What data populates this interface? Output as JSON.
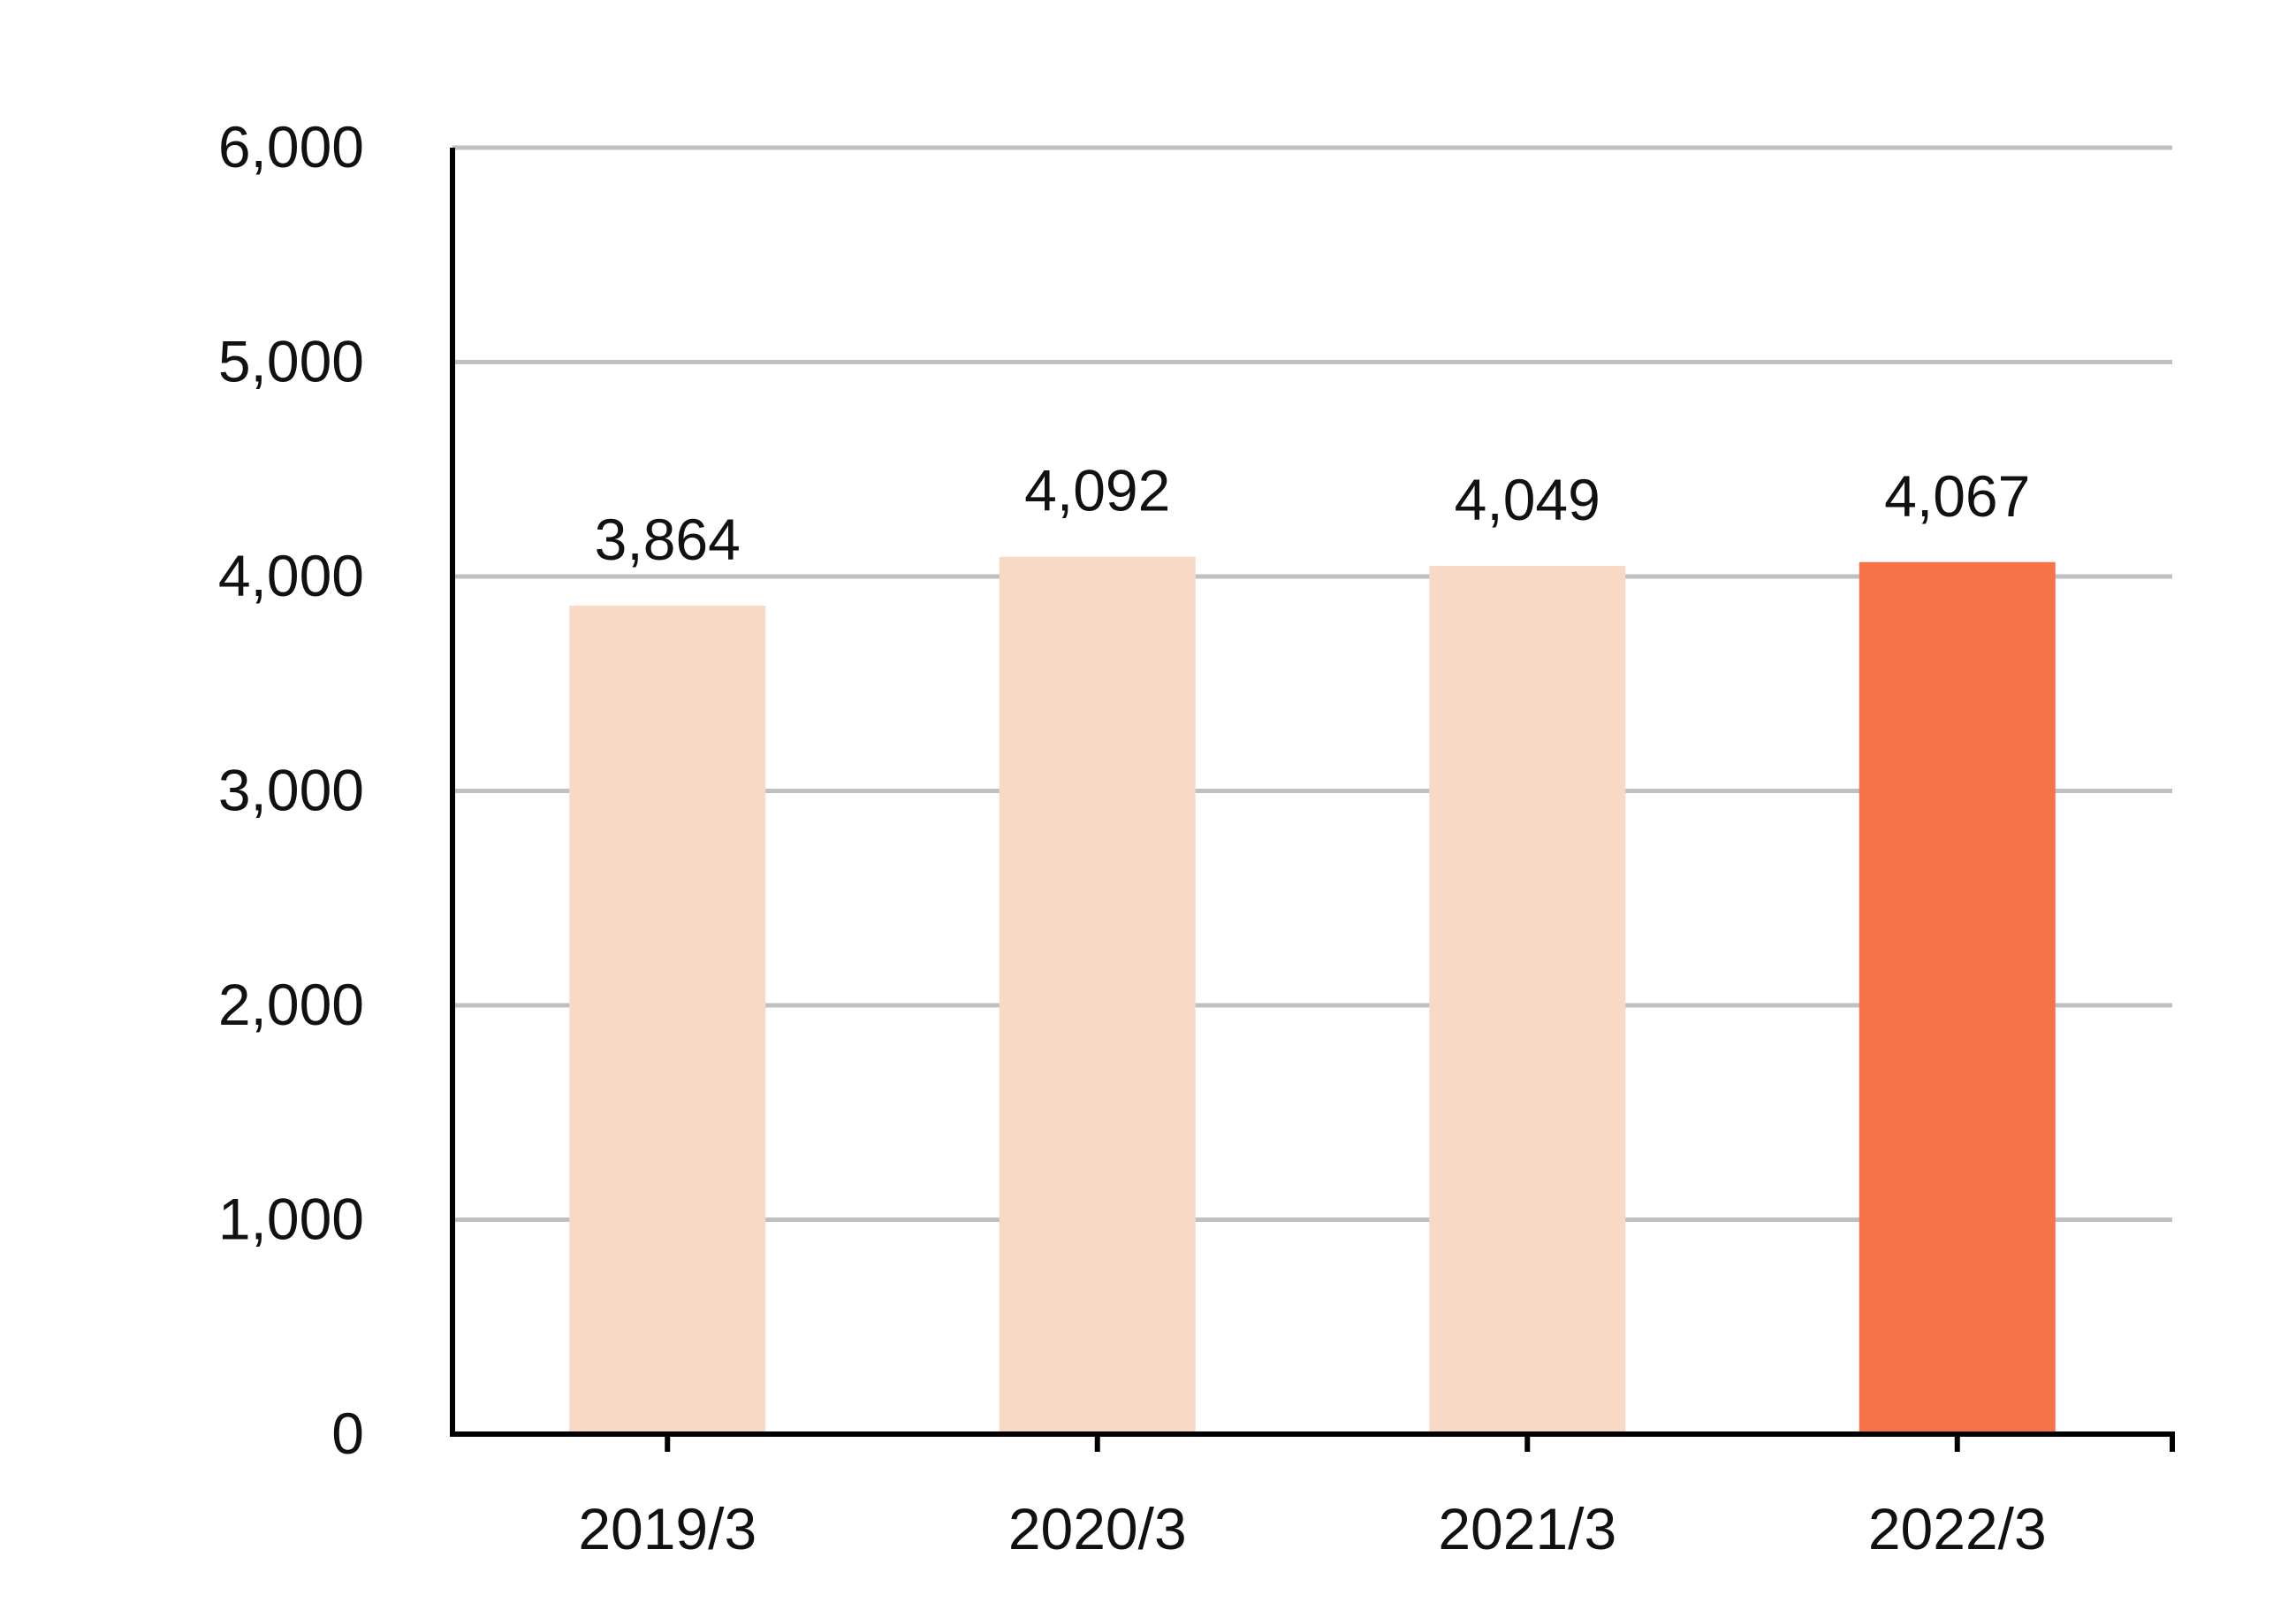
{
  "chart_data": {
    "type": "bar",
    "title": "",
    "xlabel": "",
    "ylabel": "",
    "categories": [
      "2019/3",
      "2020/3",
      "2021/3",
      "2022/3"
    ],
    "values": [
      3864,
      4092,
      4049,
      4067
    ],
    "value_labels": [
      "3,864",
      "4,092",
      "4,049",
      "4,067"
    ],
    "ylim": [
      0,
      6000
    ],
    "yticks": [
      0,
      1000,
      2000,
      3000,
      4000,
      5000,
      6000
    ],
    "ytick_labels": [
      "0",
      "1,000",
      "2,000",
      "3,000",
      "4,000",
      "5,000",
      "6,000"
    ],
    "grid": true,
    "legend": "none",
    "colors": {
      "bar": "#f8d9c5",
      "highlight": "#f77247",
      "grid": "#c0c0c0",
      "axis": "#000000"
    },
    "highlight_index": 3
  }
}
